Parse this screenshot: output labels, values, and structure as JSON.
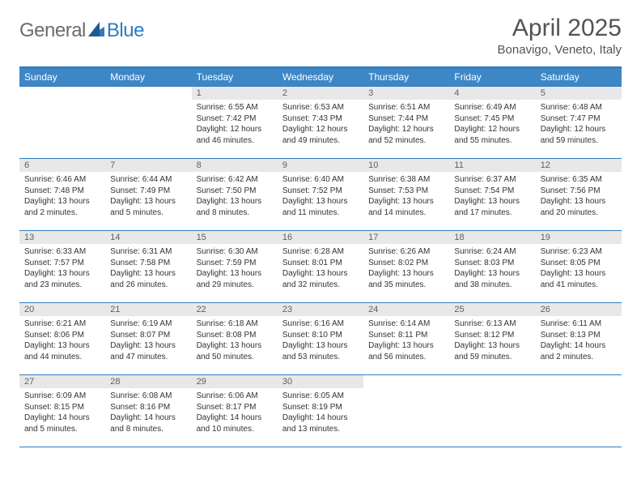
{
  "brand": {
    "part1": "General",
    "part2": "Blue"
  },
  "title": "April 2025",
  "location": "Bonavigo, Veneto, Italy",
  "colors": {
    "header_bg": "#3d87c7",
    "rule": "#2e7cc0",
    "daynum_bg": "#e8e8e8",
    "text": "#333333",
    "title_text": "#545454"
  },
  "weekdays": [
    "Sunday",
    "Monday",
    "Tuesday",
    "Wednesday",
    "Thursday",
    "Friday",
    "Saturday"
  ],
  "weeks": [
    [
      {
        "n": "",
        "sr": "",
        "ss": "",
        "dl": "",
        "empty": true
      },
      {
        "n": "",
        "sr": "",
        "ss": "",
        "dl": "",
        "empty": true
      },
      {
        "n": "1",
        "sr": "Sunrise: 6:55 AM",
        "ss": "Sunset: 7:42 PM",
        "dl": "Daylight: 12 hours and 46 minutes."
      },
      {
        "n": "2",
        "sr": "Sunrise: 6:53 AM",
        "ss": "Sunset: 7:43 PM",
        "dl": "Daylight: 12 hours and 49 minutes."
      },
      {
        "n": "3",
        "sr": "Sunrise: 6:51 AM",
        "ss": "Sunset: 7:44 PM",
        "dl": "Daylight: 12 hours and 52 minutes."
      },
      {
        "n": "4",
        "sr": "Sunrise: 6:49 AM",
        "ss": "Sunset: 7:45 PM",
        "dl": "Daylight: 12 hours and 55 minutes."
      },
      {
        "n": "5",
        "sr": "Sunrise: 6:48 AM",
        "ss": "Sunset: 7:47 PM",
        "dl": "Daylight: 12 hours and 59 minutes."
      }
    ],
    [
      {
        "n": "6",
        "sr": "Sunrise: 6:46 AM",
        "ss": "Sunset: 7:48 PM",
        "dl": "Daylight: 13 hours and 2 minutes."
      },
      {
        "n": "7",
        "sr": "Sunrise: 6:44 AM",
        "ss": "Sunset: 7:49 PM",
        "dl": "Daylight: 13 hours and 5 minutes."
      },
      {
        "n": "8",
        "sr": "Sunrise: 6:42 AM",
        "ss": "Sunset: 7:50 PM",
        "dl": "Daylight: 13 hours and 8 minutes."
      },
      {
        "n": "9",
        "sr": "Sunrise: 6:40 AM",
        "ss": "Sunset: 7:52 PM",
        "dl": "Daylight: 13 hours and 11 minutes."
      },
      {
        "n": "10",
        "sr": "Sunrise: 6:38 AM",
        "ss": "Sunset: 7:53 PM",
        "dl": "Daylight: 13 hours and 14 minutes."
      },
      {
        "n": "11",
        "sr": "Sunrise: 6:37 AM",
        "ss": "Sunset: 7:54 PM",
        "dl": "Daylight: 13 hours and 17 minutes."
      },
      {
        "n": "12",
        "sr": "Sunrise: 6:35 AM",
        "ss": "Sunset: 7:56 PM",
        "dl": "Daylight: 13 hours and 20 minutes."
      }
    ],
    [
      {
        "n": "13",
        "sr": "Sunrise: 6:33 AM",
        "ss": "Sunset: 7:57 PM",
        "dl": "Daylight: 13 hours and 23 minutes."
      },
      {
        "n": "14",
        "sr": "Sunrise: 6:31 AM",
        "ss": "Sunset: 7:58 PM",
        "dl": "Daylight: 13 hours and 26 minutes."
      },
      {
        "n": "15",
        "sr": "Sunrise: 6:30 AM",
        "ss": "Sunset: 7:59 PM",
        "dl": "Daylight: 13 hours and 29 minutes."
      },
      {
        "n": "16",
        "sr": "Sunrise: 6:28 AM",
        "ss": "Sunset: 8:01 PM",
        "dl": "Daylight: 13 hours and 32 minutes."
      },
      {
        "n": "17",
        "sr": "Sunrise: 6:26 AM",
        "ss": "Sunset: 8:02 PM",
        "dl": "Daylight: 13 hours and 35 minutes."
      },
      {
        "n": "18",
        "sr": "Sunrise: 6:24 AM",
        "ss": "Sunset: 8:03 PM",
        "dl": "Daylight: 13 hours and 38 minutes."
      },
      {
        "n": "19",
        "sr": "Sunrise: 6:23 AM",
        "ss": "Sunset: 8:05 PM",
        "dl": "Daylight: 13 hours and 41 minutes."
      }
    ],
    [
      {
        "n": "20",
        "sr": "Sunrise: 6:21 AM",
        "ss": "Sunset: 8:06 PM",
        "dl": "Daylight: 13 hours and 44 minutes."
      },
      {
        "n": "21",
        "sr": "Sunrise: 6:19 AM",
        "ss": "Sunset: 8:07 PM",
        "dl": "Daylight: 13 hours and 47 minutes."
      },
      {
        "n": "22",
        "sr": "Sunrise: 6:18 AM",
        "ss": "Sunset: 8:08 PM",
        "dl": "Daylight: 13 hours and 50 minutes."
      },
      {
        "n": "23",
        "sr": "Sunrise: 6:16 AM",
        "ss": "Sunset: 8:10 PM",
        "dl": "Daylight: 13 hours and 53 minutes."
      },
      {
        "n": "24",
        "sr": "Sunrise: 6:14 AM",
        "ss": "Sunset: 8:11 PM",
        "dl": "Daylight: 13 hours and 56 minutes."
      },
      {
        "n": "25",
        "sr": "Sunrise: 6:13 AM",
        "ss": "Sunset: 8:12 PM",
        "dl": "Daylight: 13 hours and 59 minutes."
      },
      {
        "n": "26",
        "sr": "Sunrise: 6:11 AM",
        "ss": "Sunset: 8:13 PM",
        "dl": "Daylight: 14 hours and 2 minutes."
      }
    ],
    [
      {
        "n": "27",
        "sr": "Sunrise: 6:09 AM",
        "ss": "Sunset: 8:15 PM",
        "dl": "Daylight: 14 hours and 5 minutes."
      },
      {
        "n": "28",
        "sr": "Sunrise: 6:08 AM",
        "ss": "Sunset: 8:16 PM",
        "dl": "Daylight: 14 hours and 8 minutes."
      },
      {
        "n": "29",
        "sr": "Sunrise: 6:06 AM",
        "ss": "Sunset: 8:17 PM",
        "dl": "Daylight: 14 hours and 10 minutes."
      },
      {
        "n": "30",
        "sr": "Sunrise: 6:05 AM",
        "ss": "Sunset: 8:19 PM",
        "dl": "Daylight: 14 hours and 13 minutes."
      },
      {
        "n": "",
        "sr": "",
        "ss": "",
        "dl": "",
        "empty": true
      },
      {
        "n": "",
        "sr": "",
        "ss": "",
        "dl": "",
        "empty": true
      },
      {
        "n": "",
        "sr": "",
        "ss": "",
        "dl": "",
        "empty": true
      }
    ]
  ]
}
